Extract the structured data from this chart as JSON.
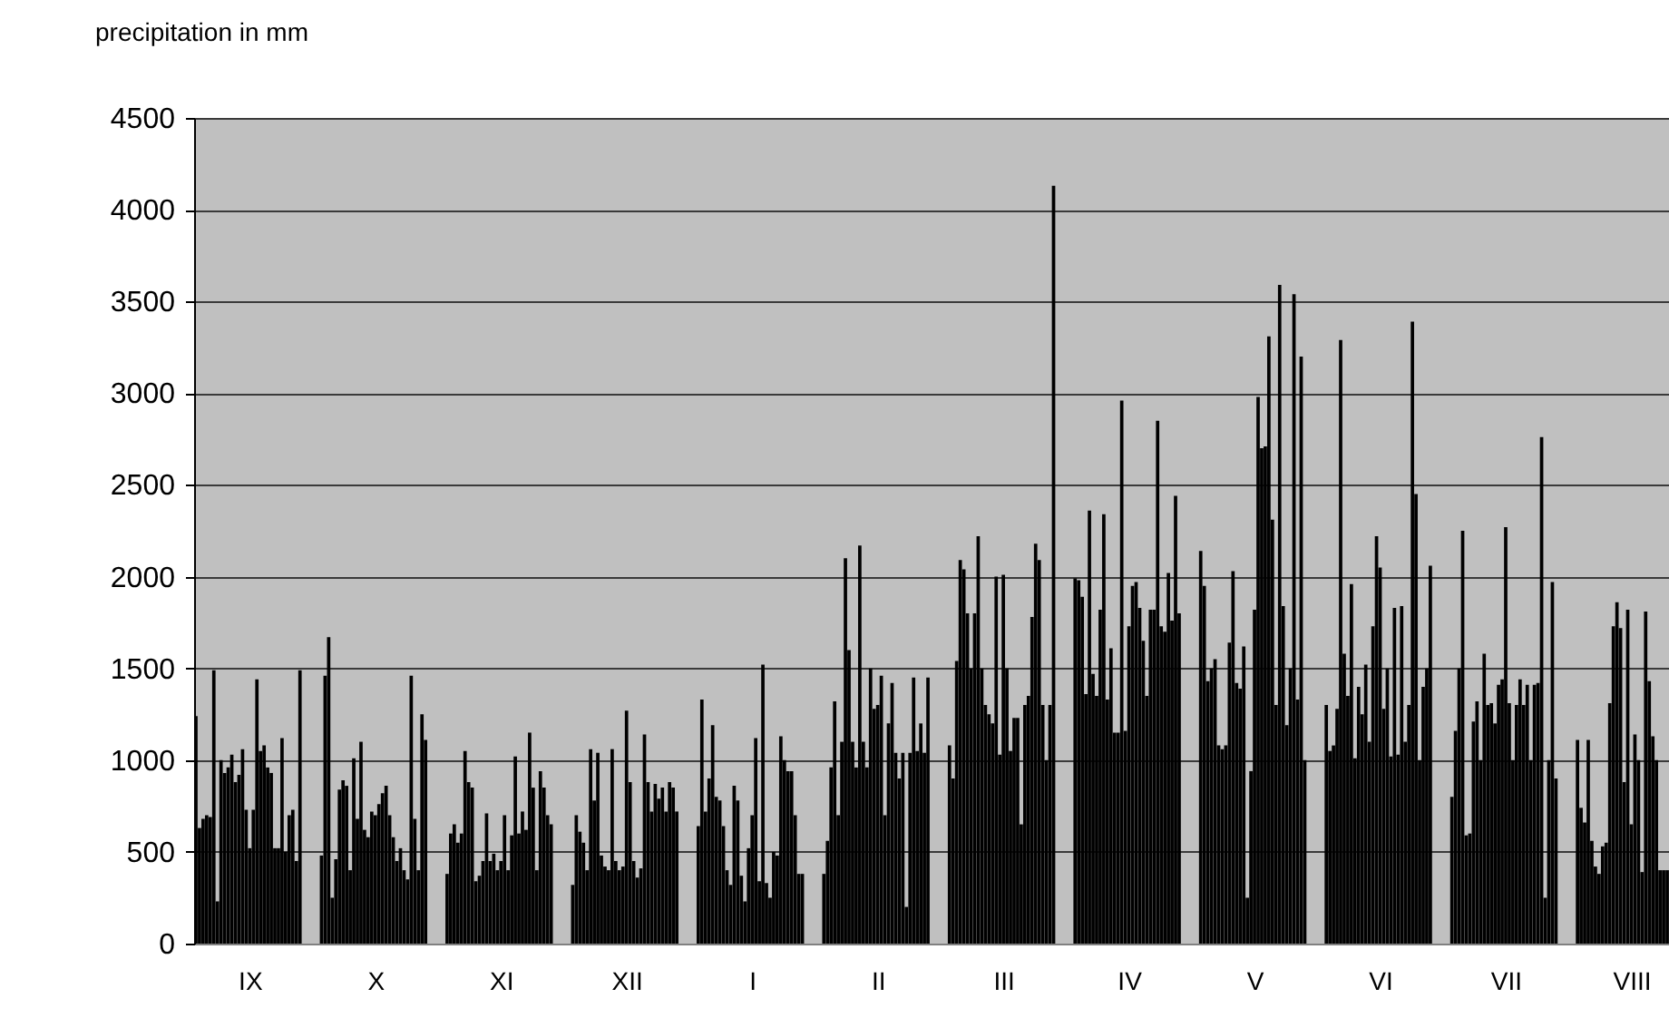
{
  "chart_data": {
    "type": "bar",
    "ylabel": "precipitation in mm",
    "color": "#000000",
    "ylim": [
      0,
      4500
    ],
    "yticks": [
      0,
      500,
      1000,
      1500,
      2000,
      2500,
      3000,
      3500,
      4000,
      4500
    ],
    "grid": "y",
    "categories": [
      null,
      null,
      null,
      null,
      null,
      null,
      null,
      null,
      null,
      null,
      null,
      null,
      null,
      null,
      null,
      "IX",
      null,
      null,
      null,
      null,
      null,
      null,
      null,
      null,
      null,
      null,
      null,
      null,
      null,
      null,
      null,
      null,
      null,
      null,
      null,
      null,
      null,
      null,
      null,
      null,
      null,
      null,
      null,
      null,
      null,
      null,
      null,
      null,
      null,
      null,
      "X",
      null,
      null,
      null,
      null,
      null,
      null,
      null,
      null,
      null,
      null,
      null,
      null,
      null,
      null,
      null,
      null,
      null,
      null,
      null,
      null,
      null,
      null,
      null,
      null,
      null,
      null,
      null,
      null,
      null,
      null,
      null,
      null,
      null,
      null,
      "XI",
      null,
      null,
      null,
      null,
      null,
      null,
      null,
      null,
      null,
      null,
      null,
      null,
      null,
      null,
      null,
      null,
      null,
      null,
      null,
      null,
      null,
      null,
      null,
      null,
      null,
      null,
      null,
      null,
      null,
      null,
      null,
      null,
      null,
      null,
      "XII",
      null,
      null,
      null,
      null,
      null,
      null,
      null,
      null,
      null,
      null,
      null,
      null,
      null,
      null,
      null,
      null,
      null,
      null,
      null,
      null,
      null,
      null,
      null,
      null,
      null,
      null,
      null,
      null,
      null,
      null,
      null,
      null,
      null,
      null,
      "I",
      null,
      null,
      null,
      null,
      null,
      null,
      null,
      null,
      null,
      null,
      null,
      null,
      null,
      null,
      null,
      null,
      null,
      null,
      null,
      null,
      null,
      null,
      null,
      null,
      null,
      null,
      null,
      null,
      null,
      null,
      null,
      null,
      null,
      null,
      "II",
      null,
      null,
      null,
      null,
      null,
      null,
      null,
      null,
      null,
      null,
      null,
      null,
      null,
      null,
      null,
      null,
      null,
      null,
      null,
      null,
      null,
      null,
      null,
      null,
      null,
      null,
      null,
      null,
      null,
      null,
      null,
      null,
      null,
      null,
      "III",
      null,
      null,
      null,
      null,
      null,
      null,
      null,
      null,
      null,
      null,
      null,
      null,
      null,
      null,
      null,
      null,
      null,
      null,
      null,
      null,
      null,
      null,
      null,
      null,
      null,
      null,
      null,
      null,
      null,
      null,
      null,
      null,
      null,
      null,
      "IV",
      null,
      null,
      null,
      null,
      null,
      null,
      null,
      null,
      null,
      null,
      null,
      null,
      null,
      null,
      null,
      null,
      null,
      null,
      null,
      null,
      null,
      null,
      null,
      null,
      null,
      null,
      null,
      null,
      null,
      null,
      null,
      null,
      null,
      null,
      "V",
      null,
      null,
      null,
      null,
      null,
      null,
      null,
      null,
      null,
      null,
      null,
      null,
      null,
      null,
      null,
      null,
      null,
      null,
      null,
      null,
      null,
      null,
      null,
      null,
      null,
      null,
      null,
      null,
      null,
      null,
      null,
      null,
      null,
      null,
      "VI",
      null,
      null,
      null,
      null,
      null,
      null,
      null,
      null,
      null,
      null,
      null,
      null,
      null,
      null,
      null,
      null,
      null,
      null,
      null,
      null,
      null,
      null,
      null,
      null,
      null,
      null,
      null,
      null,
      null,
      null,
      null,
      null,
      null,
      null,
      "VII",
      null,
      null,
      null,
      null,
      null,
      null,
      null,
      null,
      null,
      null,
      null,
      null,
      null,
      null,
      null,
      null,
      null,
      null,
      null,
      null,
      null,
      null,
      null,
      null,
      null,
      null,
      null,
      null,
      null,
      null,
      null,
      null,
      null,
      null,
      "VIII",
      null,
      null,
      null,
      null,
      null,
      null,
      null,
      null,
      null,
      null
    ],
    "values": [
      1240,
      630,
      680,
      700,
      690,
      1490,
      230,
      1000,
      930,
      960,
      1030,
      880,
      920,
      1060,
      730,
      520,
      730,
      1440,
      1050,
      1080,
      960,
      930,
      520,
      520,
      1120,
      500,
      700,
      730,
      450,
      1490,
      null,
      null,
      null,
      null,
      null,
      480,
      1460,
      1670,
      250,
      460,
      840,
      890,
      860,
      400,
      1010,
      680,
      1100,
      620,
      580,
      720,
      700,
      760,
      820,
      860,
      700,
      580,
      450,
      520,
      400,
      350,
      1460,
      680,
      400,
      1250,
      1110,
      null,
      null,
      null,
      null,
      null,
      380,
      600,
      650,
      550,
      600,
      1050,
      880,
      850,
      340,
      370,
      450,
      710,
      450,
      490,
      400,
      450,
      700,
      400,
      590,
      1020,
      600,
      720,
      620,
      1150,
      850,
      400,
      940,
      850,
      700,
      650,
      null,
      null,
      null,
      null,
      null,
      320,
      700,
      610,
      550,
      400,
      1060,
      780,
      1040,
      480,
      420,
      400,
      1060,
      450,
      400,
      420,
      1270,
      880,
      450,
      360,
      410,
      1140,
      880,
      720,
      870,
      790,
      850,
      720,
      880,
      850,
      720,
      null,
      null,
      null,
      null,
      null,
      640,
      1330,
      720,
      900,
      1190,
      800,
      780,
      640,
      400,
      320,
      860,
      780,
      370,
      230,
      520,
      700,
      1120,
      340,
      1520,
      330,
      250,
      500,
      480,
      1130,
      1000,
      940,
      940,
      700,
      380,
      380,
      null,
      null,
      null,
      null,
      null,
      380,
      560,
      960,
      1320,
      700,
      1100,
      2100,
      1600,
      1100,
      960,
      2170,
      1100,
      960,
      1500,
      1280,
      1300,
      1460,
      700,
      1200,
      1420,
      1040,
      900,
      1040,
      200,
      1040,
      1450,
      1050,
      1200,
      1040,
      1450,
      null,
      null,
      null,
      null,
      null,
      1080,
      900,
      1540,
      2090,
      2040,
      1800,
      1500,
      1800,
      2220,
      1500,
      1300,
      1250,
      1200,
      2000,
      1030,
      2010,
      1500,
      1050,
      1230,
      1230,
      650,
      1300,
      1350,
      1780,
      2180,
      2090,
      1300,
      1000,
      1300,
      4130,
      null,
      null,
      null,
      null,
      null,
      1990,
      1980,
      1890,
      1360,
      2360,
      1470,
      1350,
      1820,
      2340,
      1330,
      1610,
      1150,
      1150,
      2960,
      1160,
      1730,
      1950,
      1970,
      1830,
      1650,
      1350,
      1820,
      1820,
      2850,
      1730,
      1700,
      2020,
      1760,
      2440,
      1800,
      null,
      null,
      null,
      null,
      null,
      2140,
      1950,
      1430,
      1500,
      1550,
      1080,
      1060,
      1080,
      1640,
      2030,
      1420,
      1390,
      1620,
      250,
      940,
      1820,
      2980,
      2700,
      2710,
      3310,
      2310,
      1300,
      3590,
      1840,
      1190,
      1500,
      3540,
      1330,
      3200,
      1000,
      null,
      null,
      null,
      null,
      null,
      1300,
      1050,
      1080,
      1280,
      3290,
      1580,
      1350,
      1960,
      1010,
      1400,
      1250,
      1520,
      1100,
      1730,
      2220,
      2050,
      1280,
      1500,
      1020,
      1830,
      1030,
      1840,
      1100,
      1300,
      3390,
      2450,
      1000,
      1400,
      1500,
      2060,
      null,
      null,
      null,
      null,
      null,
      800,
      1160,
      1500,
      2250,
      590,
      600,
      1210,
      1320,
      1000,
      1580,
      1300,
      1310,
      1200,
      1410,
      1440,
      2270,
      1310,
      1000,
      1300,
      1440,
      1300,
      1410,
      1000,
      1410,
      1420,
      2760,
      250,
      1000,
      1970,
      900,
      null,
      null,
      null,
      null,
      null,
      1110,
      740,
      660,
      1110,
      560,
      420,
      380,
      530,
      550,
      1310,
      1730,
      1860,
      1720,
      880,
      1820,
      650,
      1140,
      1000,
      390,
      1810,
      1430,
      1130,
      1000,
      400,
      400,
      400
    ]
  }
}
